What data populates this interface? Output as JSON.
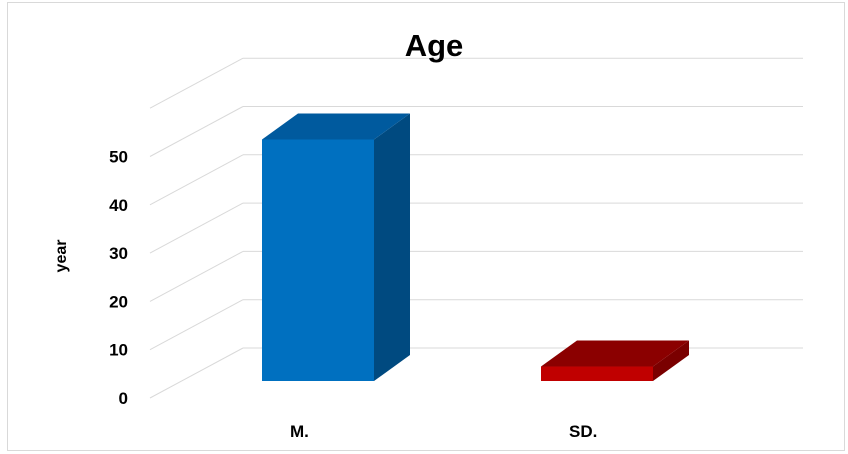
{
  "chart_data": {
    "type": "bar",
    "title": "Age",
    "ylabel": "year",
    "xlabel": "",
    "categories": [
      "M.",
      "SD."
    ],
    "values": [
      50,
      3
    ],
    "ylim": [
      0,
      50
    ],
    "yticks": [
      "0",
      "10",
      "20",
      "30",
      "40",
      "50"
    ],
    "grid": true,
    "legend": "none",
    "three_d": true,
    "colors": {
      "bars": [
        {
          "front": "#0070c0",
          "side": "#004a80",
          "top": "#005a9e"
        },
        {
          "front": "#c00000",
          "side": "#7a0000",
          "top": "#8b0000"
        }
      ],
      "grid": "#d9d9d9"
    }
  }
}
